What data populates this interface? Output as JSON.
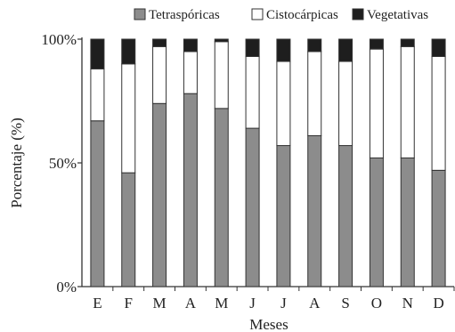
{
  "chart_data": {
    "type": "bar",
    "stacked": true,
    "categories": [
      "E",
      "F",
      "M",
      "A",
      "M",
      "J",
      "J",
      "A",
      "S",
      "O",
      "N",
      "D"
    ],
    "series": [
      {
        "name": "Tetraspóricas",
        "color": "#8c8c8c",
        "values": [
          67,
          46,
          74,
          78,
          72,
          64,
          57,
          61,
          57,
          52,
          52,
          47
        ]
      },
      {
        "name": "Cistocárpicas",
        "color": "#ffffff",
        "values": [
          21,
          44,
          23,
          17,
          27,
          29,
          34,
          34,
          34,
          44,
          45,
          46
        ]
      },
      {
        "name": "Vegetativas",
        "color": "#1e1e1e",
        "values": [
          12,
          10,
          3,
          5,
          1,
          7,
          9,
          5,
          9,
          4,
          3,
          7
        ]
      }
    ],
    "yticks": [
      "0%",
      "50%",
      "100%"
    ],
    "ylim": [
      0,
      100
    ],
    "xlabel": "Meses",
    "ylabel": "Porcentaje (%)",
    "legend_position": "top-right"
  }
}
